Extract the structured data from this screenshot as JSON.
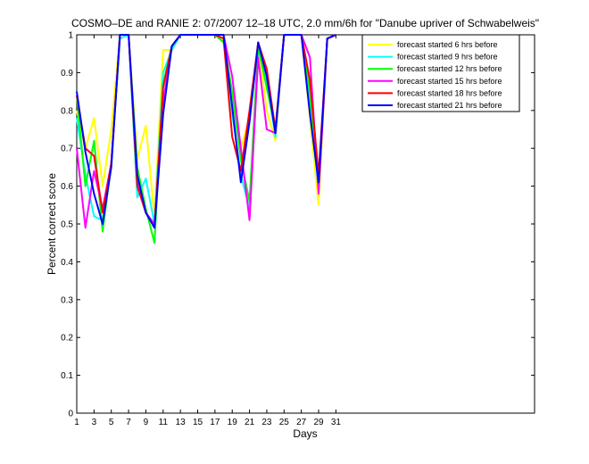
{
  "chart_data": {
    "type": "line",
    "title": "COSMO–DE and RANIE 2: 07/2007 12–18 UTC, 2.0 mm/6h for \"Danube upriver of Schwabelweis\"",
    "xlabel": "Days",
    "ylabel": "Percent correct score",
    "xlim": [
      1,
      54
    ],
    "ylim": [
      0,
      1
    ],
    "x_ticks": [
      1,
      3,
      5,
      7,
      9,
      11,
      13,
      15,
      17,
      19,
      21,
      23,
      25,
      27,
      29,
      31
    ],
    "y_ticks": [
      0,
      0.1,
      0.2,
      0.3,
      0.4,
      0.5,
      0.6,
      0.7,
      0.8,
      0.9,
      1
    ],
    "legend_position": "top-right",
    "grid": false,
    "x": [
      1,
      2,
      3,
      4,
      5,
      6,
      7,
      8,
      9,
      10,
      11,
      12,
      13,
      14,
      15,
      16,
      17,
      18,
      19,
      20,
      21,
      22,
      23,
      24,
      25,
      26,
      27,
      28,
      29,
      30,
      31
    ],
    "series": [
      {
        "name": "forecast started 6 hrs before",
        "color": "#ffff00",
        "values": [
          0.8,
          0.7,
          0.78,
          0.6,
          0.75,
          1.0,
          1.0,
          0.67,
          0.76,
          0.52,
          0.96,
          0.96,
          1.0,
          1.0,
          1.0,
          1.0,
          1.0,
          1.0,
          0.84,
          0.7,
          0.78,
          0.98,
          0.8,
          0.72,
          1.0,
          1.0,
          1.0,
          0.78,
          0.55,
          0.99,
          1.0
        ]
      },
      {
        "name": "forecast started 9 hrs before",
        "color": "#00ffff",
        "values": [
          0.78,
          0.63,
          0.52,
          0.51,
          0.66,
          0.99,
          1.0,
          0.57,
          0.62,
          0.5,
          0.9,
          0.96,
          1.0,
          1.0,
          1.0,
          1.0,
          1.0,
          0.99,
          0.79,
          0.63,
          0.54,
          0.96,
          0.88,
          0.73,
          1.0,
          1.0,
          1.0,
          0.82,
          0.59,
          0.99,
          1.0
        ]
      },
      {
        "name": "forecast started 12 hrs before",
        "color": "#00ff00",
        "values": [
          0.84,
          0.6,
          0.72,
          0.48,
          0.66,
          1.0,
          1.0,
          0.65,
          0.54,
          0.45,
          0.87,
          0.97,
          1.0,
          1.0,
          1.0,
          1.0,
          1.0,
          0.98,
          0.85,
          0.67,
          0.56,
          0.97,
          0.86,
          0.75,
          1.0,
          1.0,
          1.0,
          0.85,
          0.6,
          0.99,
          1.0
        ]
      },
      {
        "name": "forecast started 15 hrs before",
        "color": "#ff00ff",
        "values": [
          0.7,
          0.49,
          0.64,
          0.54,
          0.66,
          1.0,
          1.0,
          0.62,
          0.53,
          0.5,
          0.82,
          0.97,
          1.0,
          1.0,
          1.0,
          1.0,
          1.0,
          1.0,
          0.89,
          0.7,
          0.51,
          0.94,
          0.75,
          0.74,
          1.0,
          1.0,
          1.0,
          0.94,
          0.58,
          0.99,
          1.0
        ]
      },
      {
        "name": "forecast started 18 hrs before",
        "color": "#ff0000",
        "values": [
          0.84,
          0.7,
          0.68,
          0.53,
          0.66,
          1.0,
          1.0,
          0.6,
          0.53,
          0.49,
          0.86,
          0.97,
          1.0,
          1.0,
          1.0,
          1.0,
          1.0,
          0.99,
          0.73,
          0.64,
          0.8,
          0.98,
          0.91,
          0.75,
          1.0,
          1.0,
          1.0,
          0.88,
          0.63,
          0.99,
          1.0
        ]
      },
      {
        "name": "forecast started 21 hrs before",
        "color": "#0000ff",
        "values": [
          0.85,
          0.69,
          0.58,
          0.5,
          0.65,
          1.0,
          1.0,
          0.63,
          0.53,
          0.49,
          0.79,
          0.97,
          1.0,
          1.0,
          1.0,
          1.0,
          1.0,
          1.0,
          0.81,
          0.61,
          0.77,
          0.98,
          0.89,
          0.74,
          1.0,
          1.0,
          1.0,
          0.79,
          0.61,
          0.99,
          1.0
        ]
      }
    ]
  }
}
